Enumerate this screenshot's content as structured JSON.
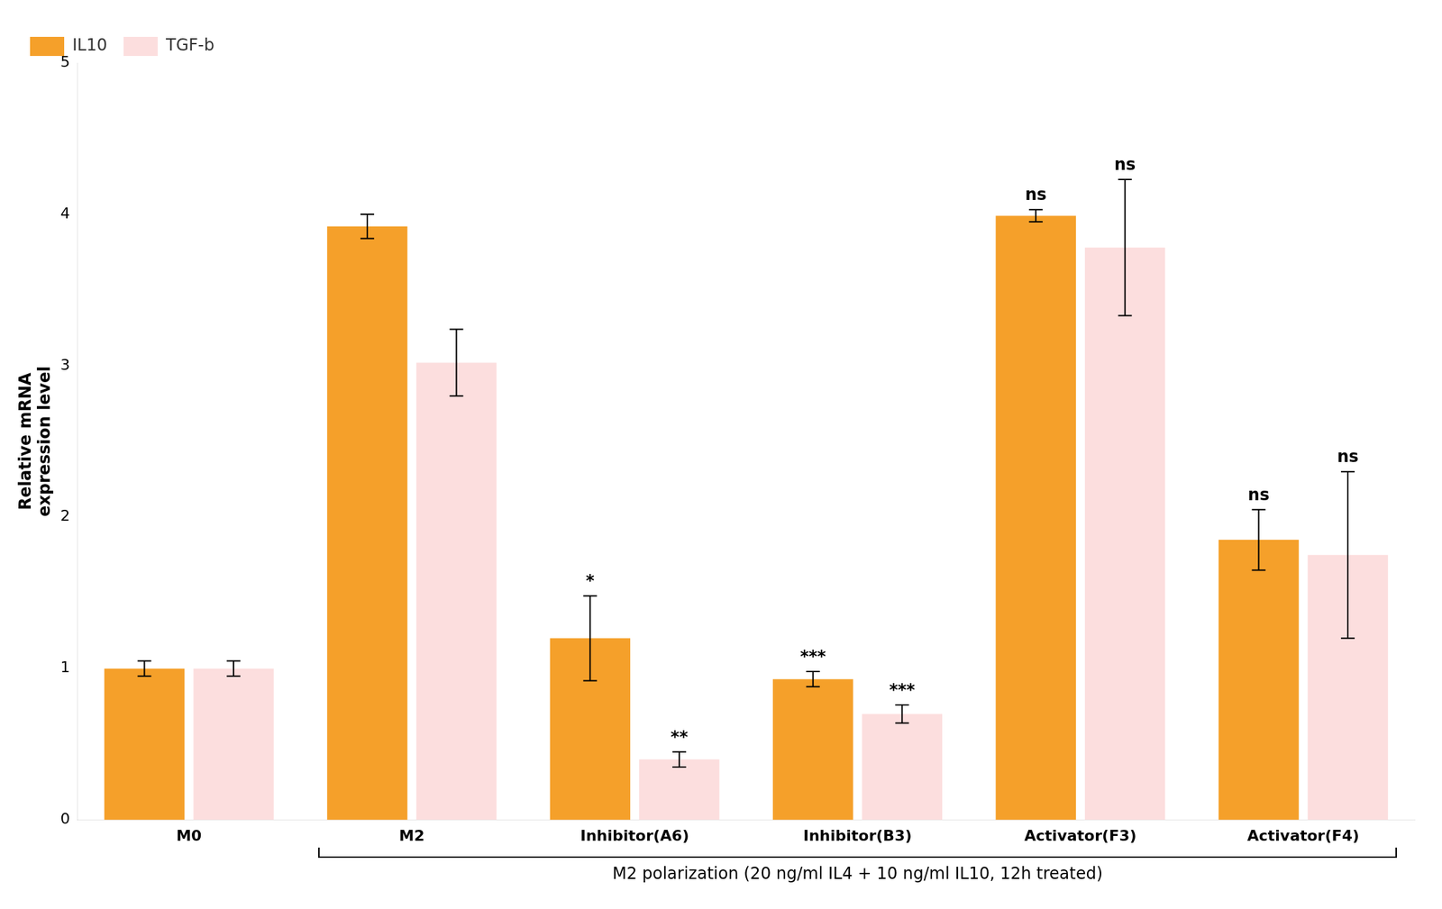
{
  "chart_data": {
    "type": "bar",
    "categories": [
      "M0",
      "M2",
      "Inhibitor(A6)",
      "Inhibitor(B3)",
      "Activator(F3)",
      "Activator(F4)"
    ],
    "series": [
      {
        "name": "IL10",
        "color": "#F5A02A",
        "values": [
          1.0,
          3.92,
          1.2,
          0.93,
          3.99,
          1.85
        ],
        "errors": [
          0.05,
          0.08,
          0.28,
          0.05,
          0.04,
          0.2
        ],
        "significance": [
          null,
          null,
          "*",
          "***",
          "ns",
          "ns"
        ]
      },
      {
        "name": "TGF-b",
        "color": "#FCDEDE",
        "values": [
          1.0,
          3.02,
          0.4,
          0.7,
          3.78,
          1.75
        ],
        "errors": [
          0.05,
          0.22,
          0.05,
          0.06,
          0.45,
          0.55
        ],
        "significance": [
          null,
          null,
          "**",
          "***",
          "ns",
          "ns"
        ]
      }
    ],
    "ylabel": "Relative mRNA\nexpression level",
    "ylim": [
      0,
      5
    ],
    "yticks": [
      0,
      1,
      2,
      3,
      4,
      5
    ],
    "grid": false,
    "legend": "upper left",
    "annotations": [
      {
        "text": "M2 polarization (20 ng/ml IL4 + 10 ng/ml IL10, 12h treated)",
        "from": "M2",
        "to": "Activator(F4)"
      }
    ]
  }
}
